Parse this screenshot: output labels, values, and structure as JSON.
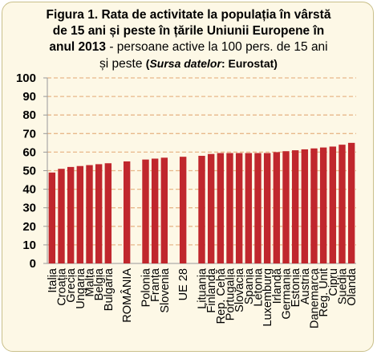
{
  "title": {
    "line_bold": "Figura 1. Rata de activitate la populația în vârstă de 15 ani și peste în țările Uniunii Europene în anul 2013",
    "line_normal": " - persoane active la 100 pers. de 15 ani și peste",
    "source_open": "(",
    "source_italic": "Sursa datelor",
    "source_rest": ": Eurostat)"
  },
  "colors": {
    "bar": "#c0272d",
    "grid": "#e8b88a",
    "background": "#fdf8e6",
    "frame": "#c9bf8a"
  },
  "chart_data": {
    "type": "bar",
    "title": "Figura 1. Rata de activitate la populația în vârstă de 15 ani și peste în țările Uniunii Europene în anul 2013 - persoane active la 100 pers. de 15 ani și peste (Sursa datelor: Eurostat)",
    "xlabel": "",
    "ylabel": "",
    "ylim": [
      0,
      100
    ],
    "yticks": [
      "0",
      "10",
      "20",
      "30",
      "40",
      "50",
      "60",
      "70",
      "80",
      "90",
      "100"
    ],
    "grid": "horizontal dashed",
    "categories": [
      "Italia",
      "Croația",
      "Grecia",
      "Ungaria",
      "Malta",
      "Belgia",
      "Bulgaria",
      "ROMÂNIA",
      "Polonia",
      "Franța",
      "Slovenia",
      "UE 28",
      "Lituania",
      "Finlanda",
      "Rep. Cehă",
      "Portugalia",
      "Slovacia",
      "Spania",
      "Letonia",
      "Luxemburg",
      "Irlanda",
      "Germania",
      "Estonia",
      "Austria",
      "Danemarca",
      "Reg. Unit",
      "Cipru",
      "Suedia",
      "Olanda"
    ],
    "values": [
      49,
      51,
      52,
      52.5,
      53,
      53.5,
      54,
      55,
      56,
      56.5,
      57,
      57.5,
      58,
      59,
      59.5,
      59.5,
      59.5,
      59.5,
      59.5,
      59.5,
      60,
      60.5,
      61,
      61.5,
      62,
      62.5,
      63,
      64,
      65
    ],
    "groups": [
      7,
      1,
      3,
      1,
      17
    ]
  }
}
